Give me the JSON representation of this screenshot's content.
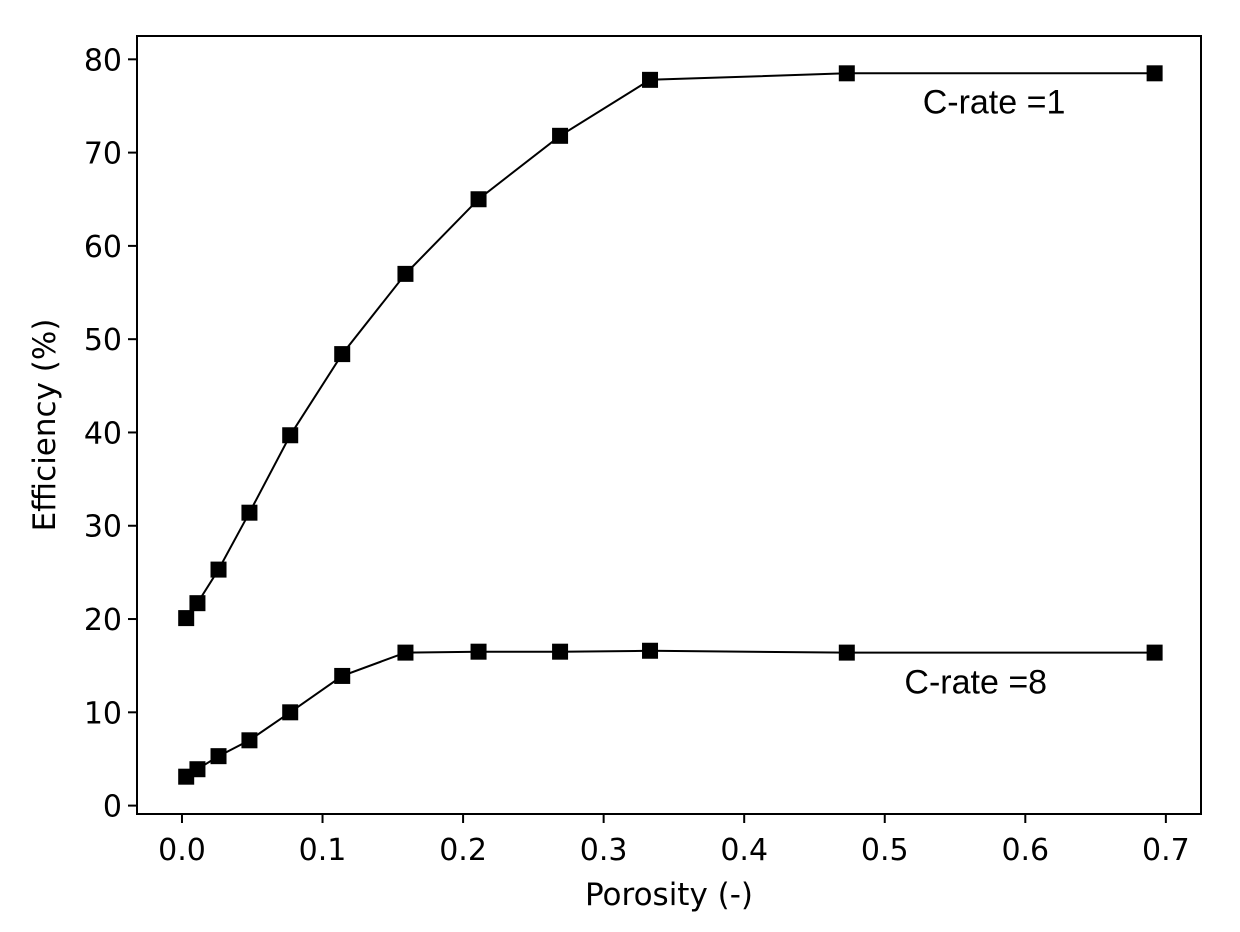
{
  "chart_data": {
    "type": "line",
    "title": "",
    "xlabel": "Porosity (-)",
    "ylabel": "Efficiency (%)",
    "xlim": [
      -0.032,
      0.725
    ],
    "ylim": [
      -0.9,
      82.5
    ],
    "xticks": [
      0.0,
      0.1,
      0.2,
      0.3,
      0.4,
      0.5,
      0.6,
      0.7
    ],
    "xtick_labels": [
      "0.0",
      "0.1",
      "0.2",
      "0.3",
      "0.4",
      "0.5",
      "0.6",
      "0.7"
    ],
    "yticks": [
      0,
      10,
      20,
      30,
      40,
      50,
      60,
      70,
      80
    ],
    "ytick_labels": [
      "0",
      "10",
      "20",
      "30",
      "40",
      "50",
      "60",
      "70",
      "80"
    ],
    "grid": false,
    "legend": "none",
    "marker": "square",
    "color": "#000000",
    "series": [
      {
        "x": [
          0.003,
          0.011,
          0.026,
          0.048,
          0.077,
          0.114,
          0.159,
          0.211,
          0.269,
          0.333,
          0.473,
          0.692
        ],
        "y": [
          20.1,
          21.7,
          25.3,
          31.4,
          39.7,
          48.4,
          57.0,
          65.0,
          71.8,
          77.8,
          78.5,
          78.5
        ]
      },
      {
        "x": [
          0.003,
          0.011,
          0.026,
          0.048,
          0.077,
          0.114,
          0.159,
          0.211,
          0.269,
          0.333,
          0.473,
          0.692
        ],
        "y": [
          3.1,
          3.9,
          5.3,
          7.0,
          10.0,
          13.9,
          16.4,
          16.5,
          16.5,
          16.6,
          16.4,
          16.4
        ]
      }
    ],
    "annotations": [
      {
        "text": "C-rate =1",
        "x": 0.527,
        "y": 74.2
      },
      {
        "text": "C-rate =8",
        "x": 0.514,
        "y": 12.0
      }
    ]
  }
}
